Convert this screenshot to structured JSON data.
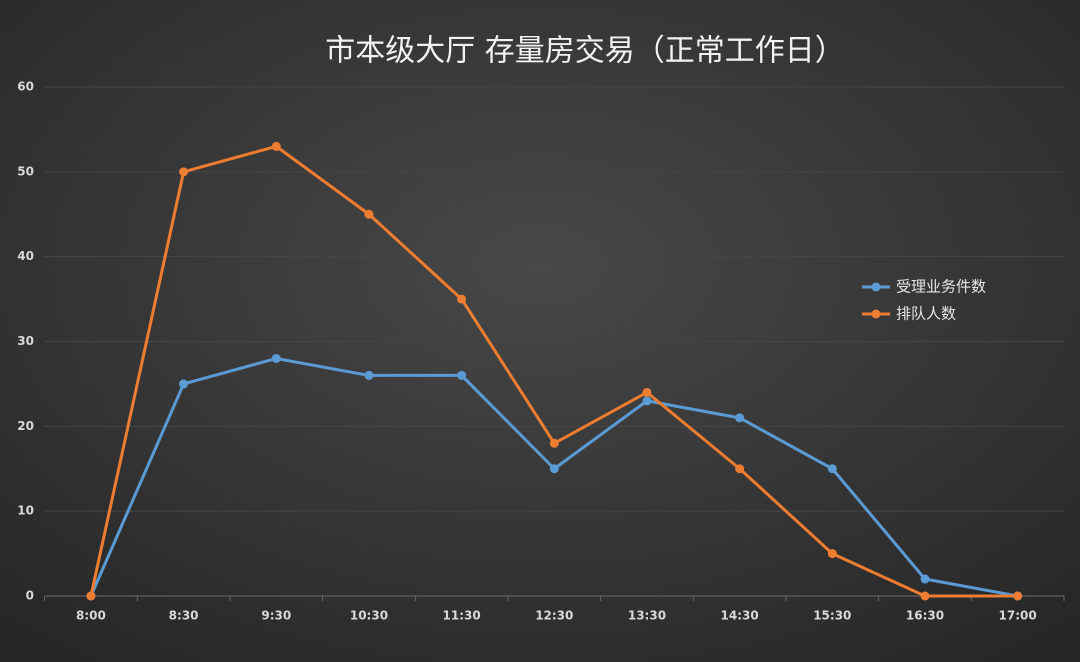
{
  "chart_data": {
    "type": "line",
    "title": "市本级大厅  存量房交易（正常工作日）",
    "categories": [
      "8:00",
      "8:30",
      "9:30",
      "10:30",
      "11:30",
      "12:30",
      "13:30",
      "14:30",
      "15:30",
      "16:30",
      "17:00"
    ],
    "series": [
      {
        "name": "受理业务件数",
        "color": "#5b9bd5",
        "values": [
          0,
          25,
          28,
          26,
          26,
          15,
          23,
          21,
          15,
          2,
          0
        ]
      },
      {
        "name": "排队人数",
        "color": "#ed7d31",
        "values": [
          0,
          50,
          53,
          45,
          35,
          18,
          24,
          15,
          5,
          0,
          0
        ]
      }
    ],
    "ylim": [
      0,
      60
    ],
    "yticks": [
      0,
      10,
      20,
      30,
      40,
      50,
      60
    ],
    "grid": true,
    "legend": "right"
  }
}
